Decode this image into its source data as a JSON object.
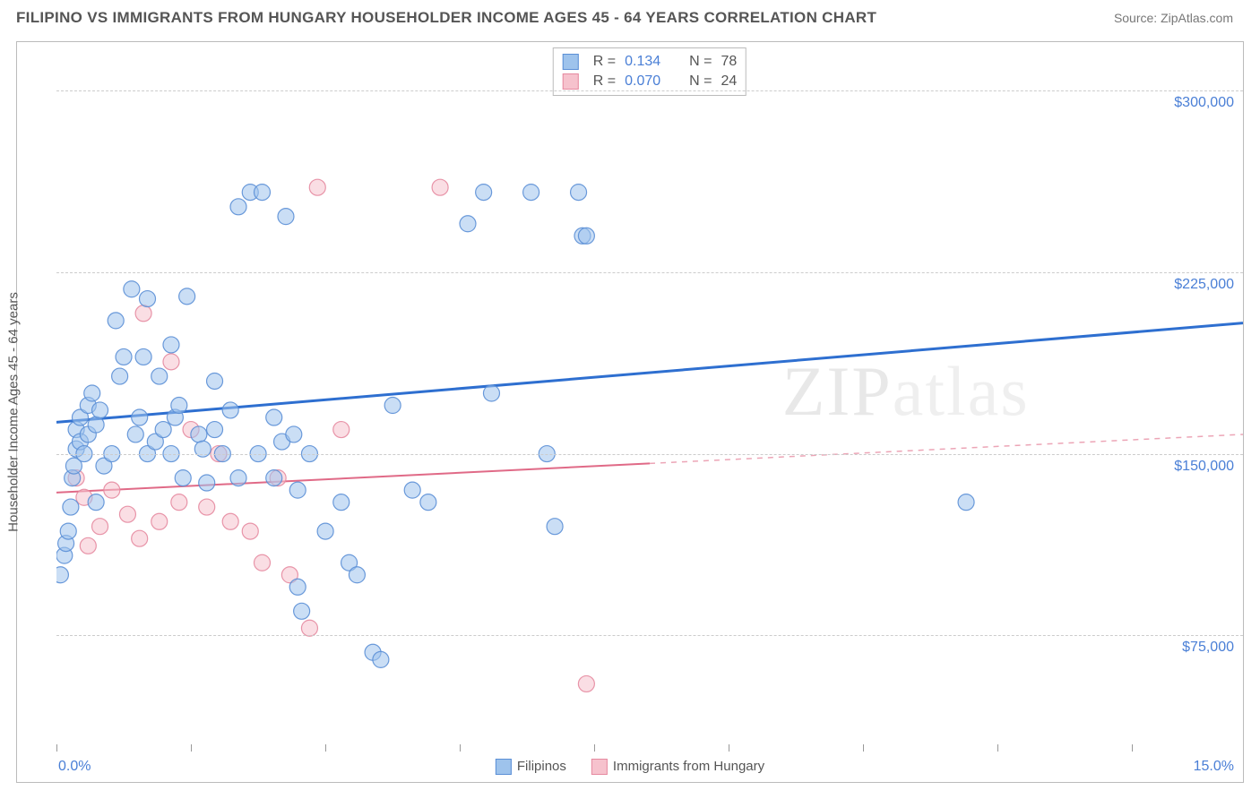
{
  "header": {
    "title": "FILIPINO VS IMMIGRANTS FROM HUNGARY HOUSEHOLDER INCOME AGES 45 - 64 YEARS CORRELATION CHART",
    "source": "Source: ZipAtlas.com"
  },
  "chart": {
    "type": "scatter",
    "y_label": "Householder Income Ages 45 - 64 years",
    "watermark": "ZIPatlas",
    "xlim": [
      0.0,
      15.0
    ],
    "ylim": [
      30000,
      320000
    ],
    "x_tick_positions": [
      0,
      1.7,
      3.4,
      5.1,
      6.8,
      8.5,
      10.2,
      11.9,
      13.6
    ],
    "x_axis_min_label": "0.0%",
    "x_axis_max_label": "15.0%",
    "y_ticks": [
      {
        "v": 75000,
        "label": "$75,000"
      },
      {
        "v": 150000,
        "label": "$150,000"
      },
      {
        "v": 225000,
        "label": "$225,000"
      },
      {
        "v": 300000,
        "label": "$300,000"
      }
    ],
    "grid_color": "#cccccc",
    "background_color": "#ffffff",
    "plot_border_color": "#bbbbbb",
    "tick_label_color": "#4a7fd6",
    "axis_label_color": "#555555",
    "marker_radius": 9,
    "marker_opacity": 0.55,
    "marker_stroke_opacity": 0.9,
    "series": [
      {
        "name": "Filipinos",
        "fill": "#9ec3ec",
        "stroke": "#5b8fd6",
        "stats": {
          "R": "0.134",
          "N": "78"
        },
        "trend": {
          "y0": 163000,
          "y1": 204000,
          "dash": false,
          "extend_dash_from": null,
          "color": "#2e6fd0",
          "width": 3
        },
        "points": [
          [
            0.05,
            100000
          ],
          [
            0.1,
            108000
          ],
          [
            0.12,
            113000
          ],
          [
            0.15,
            118000
          ],
          [
            0.18,
            128000
          ],
          [
            0.2,
            140000
          ],
          [
            0.22,
            145000
          ],
          [
            0.25,
            152000
          ],
          [
            0.25,
            160000
          ],
          [
            0.3,
            155000
          ],
          [
            0.3,
            165000
          ],
          [
            0.35,
            150000
          ],
          [
            0.4,
            158000
          ],
          [
            0.4,
            170000
          ],
          [
            0.45,
            175000
          ],
          [
            0.5,
            130000
          ],
          [
            0.5,
            162000
          ],
          [
            0.55,
            168000
          ],
          [
            0.6,
            145000
          ],
          [
            0.7,
            150000
          ],
          [
            0.75,
            205000
          ],
          [
            0.8,
            182000
          ],
          [
            0.85,
            190000
          ],
          [
            0.95,
            218000
          ],
          [
            1.0,
            158000
          ],
          [
            1.05,
            165000
          ],
          [
            1.1,
            190000
          ],
          [
            1.15,
            150000
          ],
          [
            1.15,
            214000
          ],
          [
            1.25,
            155000
          ],
          [
            1.3,
            182000
          ],
          [
            1.35,
            160000
          ],
          [
            1.45,
            150000
          ],
          [
            1.45,
            195000
          ],
          [
            1.5,
            165000
          ],
          [
            1.55,
            170000
          ],
          [
            1.6,
            140000
          ],
          [
            1.65,
            215000
          ],
          [
            1.8,
            158000
          ],
          [
            1.85,
            152000
          ],
          [
            1.9,
            138000
          ],
          [
            2.0,
            160000
          ],
          [
            2.0,
            180000
          ],
          [
            2.1,
            150000
          ],
          [
            2.2,
            168000
          ],
          [
            2.3,
            140000
          ],
          [
            2.3,
            252000
          ],
          [
            2.45,
            258000
          ],
          [
            2.55,
            150000
          ],
          [
            2.6,
            258000
          ],
          [
            2.75,
            165000
          ],
          [
            2.75,
            140000
          ],
          [
            2.85,
            155000
          ],
          [
            2.9,
            248000
          ],
          [
            3.0,
            158000
          ],
          [
            3.05,
            95000
          ],
          [
            3.05,
            135000
          ],
          [
            3.1,
            85000
          ],
          [
            3.2,
            150000
          ],
          [
            3.4,
            118000
          ],
          [
            3.6,
            130000
          ],
          [
            3.7,
            105000
          ],
          [
            3.8,
            100000
          ],
          [
            4.0,
            68000
          ],
          [
            4.1,
            65000
          ],
          [
            4.25,
            170000
          ],
          [
            4.5,
            135000
          ],
          [
            4.7,
            130000
          ],
          [
            5.2,
            245000
          ],
          [
            5.4,
            258000
          ],
          [
            5.5,
            175000
          ],
          [
            6.0,
            258000
          ],
          [
            6.2,
            150000
          ],
          [
            6.3,
            120000
          ],
          [
            6.6,
            258000
          ],
          [
            6.65,
            240000
          ],
          [
            6.7,
            240000
          ],
          [
            11.5,
            130000
          ]
        ]
      },
      {
        "name": "Immigrants from Hungary",
        "fill": "#f6c2cd",
        "stroke": "#e68aa0",
        "stats": {
          "R": "0.070",
          "N": "24"
        },
        "trend": {
          "y0": 134000,
          "y1": 158000,
          "dash": false,
          "extend_dash_from": 7.5,
          "color": "#e06a87",
          "width": 2
        },
        "points": [
          [
            0.25,
            140000
          ],
          [
            0.35,
            132000
          ],
          [
            0.4,
            112000
          ],
          [
            0.55,
            120000
          ],
          [
            0.7,
            135000
          ],
          [
            0.9,
            125000
          ],
          [
            1.05,
            115000
          ],
          [
            1.1,
            208000
          ],
          [
            1.3,
            122000
          ],
          [
            1.45,
            188000
          ],
          [
            1.55,
            130000
          ],
          [
            1.7,
            160000
          ],
          [
            1.9,
            128000
          ],
          [
            2.05,
            150000
          ],
          [
            2.2,
            122000
          ],
          [
            2.45,
            118000
          ],
          [
            2.6,
            105000
          ],
          [
            2.8,
            140000
          ],
          [
            2.95,
            100000
          ],
          [
            3.2,
            78000
          ],
          [
            3.3,
            260000
          ],
          [
            3.6,
            160000
          ],
          [
            4.85,
            260000
          ],
          [
            6.7,
            55000
          ]
        ]
      }
    ],
    "legend_bottom": [
      {
        "label": "Filipinos",
        "fill": "#9ec3ec",
        "stroke": "#5b8fd6"
      },
      {
        "label": "Immigrants from Hungary",
        "fill": "#f6c2cd",
        "stroke": "#e68aa0"
      }
    ]
  }
}
